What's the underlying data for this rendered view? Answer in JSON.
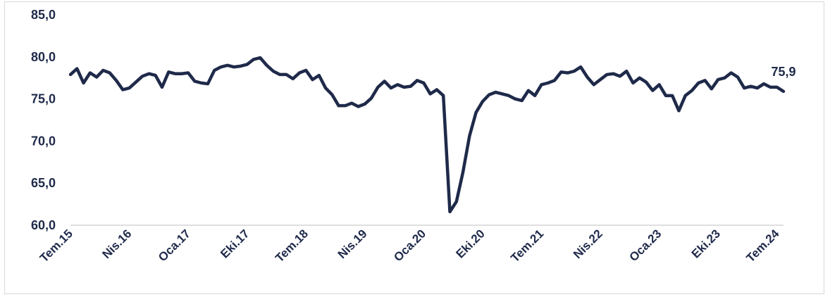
{
  "chart_data": {
    "type": "line",
    "title": "",
    "xlabel": "",
    "ylabel": "",
    "ylim": [
      60,
      85
    ],
    "yticks": [
      "85,0",
      "80,0",
      "75,0",
      "70,0",
      "65,0",
      "60,0"
    ],
    "ytick_values": [
      85,
      80,
      75,
      70,
      65,
      60
    ],
    "xtick_labels": [
      "Tem.15",
      "Nis.16",
      "Oca.17",
      "Eki.17",
      "Tem.18",
      "Nis.19",
      "Oca.20",
      "Eki.20",
      "Tem.21",
      "Nis.22",
      "Oca.23",
      "Eki.23",
      "Tem.24"
    ],
    "x_start": "2015-07",
    "x_end": "2024-07",
    "grid": "horizontal",
    "legend": "none",
    "series_color": "#1f2a4a",
    "last_value_label": "75,9",
    "values": [
      77.9,
      78.6,
      76.9,
      78.1,
      77.6,
      78.4,
      78.1,
      77.2,
      76.1,
      76.3,
      77.0,
      77.7,
      78.0,
      77.8,
      76.4,
      78.2,
      78.0,
      78.0,
      78.1,
      77.1,
      76.9,
      76.8,
      78.4,
      78.8,
      79.0,
      78.8,
      78.9,
      79.1,
      79.7,
      79.9,
      79.0,
      78.3,
      77.9,
      77.9,
      77.4,
      78.1,
      78.4,
      77.3,
      77.8,
      76.3,
      75.5,
      74.2,
      74.2,
      74.5,
      74.1,
      74.4,
      75.1,
      76.4,
      77.1,
      76.3,
      76.7,
      76.4,
      76.5,
      77.2,
      76.9,
      75.6,
      76.1,
      75.4,
      61.6,
      62.8,
      66.3,
      70.6,
      73.4,
      74.7,
      75.5,
      75.8,
      75.6,
      75.4,
      75.0,
      74.8,
      76.0,
      75.4,
      76.7,
      76.9,
      77.2,
      78.2,
      78.1,
      78.3,
      78.8,
      77.6,
      76.7,
      77.3,
      77.9,
      78.0,
      77.7,
      78.3,
      76.9,
      77.5,
      77.0,
      76.0,
      76.7,
      75.4,
      75.4,
      73.6,
      75.4,
      76.0,
      76.9,
      77.2,
      76.2,
      77.3,
      77.5,
      78.1,
      77.6,
      76.3,
      76.5,
      76.3,
      76.8,
      76.4,
      76.4,
      75.9
    ]
  }
}
